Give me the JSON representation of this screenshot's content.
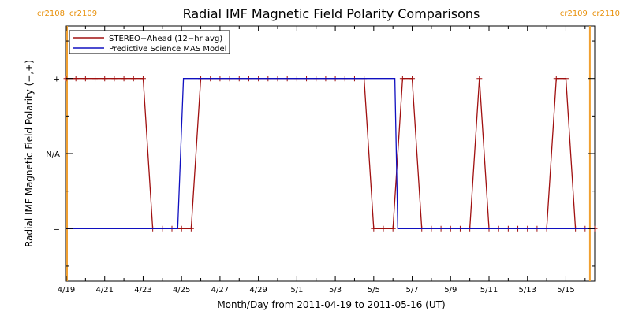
{
  "chart_data": {
    "type": "line",
    "title": "Radial IMF Magnetic Field Polarity Comparisons",
    "xlabel": "Month/Day from 2011-04-19 to 2011-05-16 (UT)",
    "ylabel": "Radial IMF Magnetic Field Polarity (−,+)",
    "xlim": [
      0,
      27.5
    ],
    "ylim": [
      -1.7,
      1.7
    ],
    "x_ticks": [
      {
        "x": 0,
        "label": "4/19"
      },
      {
        "x": 2,
        "label": "4/21"
      },
      {
        "x": 4,
        "label": "4/23"
      },
      {
        "x": 6,
        "label": "4/25"
      },
      {
        "x": 8,
        "label": "4/27"
      },
      {
        "x": 10,
        "label": "4/29"
      },
      {
        "x": 12,
        "label": "5/1"
      },
      {
        "x": 14,
        "label": "5/3"
      },
      {
        "x": 16,
        "label": "5/5"
      },
      {
        "x": 18,
        "label": "5/7"
      },
      {
        "x": 20,
        "label": "5/9"
      },
      {
        "x": 22,
        "label": "5/11"
      },
      {
        "x": 24,
        "label": "5/13"
      },
      {
        "x": 26,
        "label": "5/15"
      }
    ],
    "y_ticks": [
      {
        "y": 1,
        "label": "+"
      },
      {
        "y": 0,
        "label": "N/A"
      },
      {
        "y": -1,
        "label": "−"
      }
    ],
    "carrington": [
      {
        "x": 0,
        "left": "cr2108",
        "right": "cr2109"
      },
      {
        "x": 27.25,
        "left": "cr2109",
        "right": "cr2110"
      }
    ],
    "legend_position": "top-left",
    "series": [
      {
        "name": "STEREO−Ahead (12−hr avg)",
        "color": "#a01010",
        "markers": true,
        "points": [
          [
            0,
            1
          ],
          [
            0.5,
            1
          ],
          [
            1,
            1
          ],
          [
            1.5,
            1
          ],
          [
            2,
            1
          ],
          [
            2.5,
            1
          ],
          [
            3,
            1
          ],
          [
            3.5,
            1
          ],
          [
            4,
            1
          ],
          [
            4.5,
            -1
          ],
          [
            5,
            -1
          ],
          [
            5.5,
            -1
          ],
          [
            6,
            -1
          ],
          [
            6.5,
            -1
          ],
          [
            7,
            1
          ],
          [
            7.5,
            1
          ],
          [
            8,
            1
          ],
          [
            8.5,
            1
          ],
          [
            9,
            1
          ],
          [
            9.5,
            1
          ],
          [
            10,
            1
          ],
          [
            10.5,
            1
          ],
          [
            11,
            1
          ],
          [
            11.5,
            1
          ],
          [
            12,
            1
          ],
          [
            12.5,
            1
          ],
          [
            13,
            1
          ],
          [
            13.5,
            1
          ],
          [
            14,
            1
          ],
          [
            14.5,
            1
          ],
          [
            15,
            1
          ],
          [
            15.5,
            1
          ],
          [
            16,
            -1
          ],
          [
            16.5,
            -1
          ],
          [
            17,
            -1
          ],
          [
            17.5,
            1
          ],
          [
            18,
            1
          ],
          [
            18.5,
            -1
          ],
          [
            19,
            -1
          ],
          [
            19.5,
            -1
          ],
          [
            20,
            -1
          ],
          [
            20.5,
            -1
          ],
          [
            21,
            -1
          ],
          [
            21.5,
            1
          ],
          [
            22,
            -1
          ],
          [
            22.5,
            -1
          ],
          [
            23,
            -1
          ],
          [
            23.5,
            -1
          ],
          [
            24,
            -1
          ],
          [
            24.5,
            -1
          ],
          [
            25,
            -1
          ],
          [
            25.5,
            1
          ],
          [
            26,
            1
          ],
          [
            26.5,
            -1
          ],
          [
            27,
            -1
          ],
          [
            27.5,
            -1
          ]
        ]
      },
      {
        "name": "Predictive Science MAS Model",
        "color": "#1010c0",
        "markers": false,
        "points": [
          [
            0,
            -1
          ],
          [
            5.8,
            -1
          ],
          [
            6.1,
            1
          ],
          [
            17.1,
            1
          ],
          [
            17.25,
            -1
          ],
          [
            27.5,
            -1
          ]
        ]
      }
    ]
  }
}
